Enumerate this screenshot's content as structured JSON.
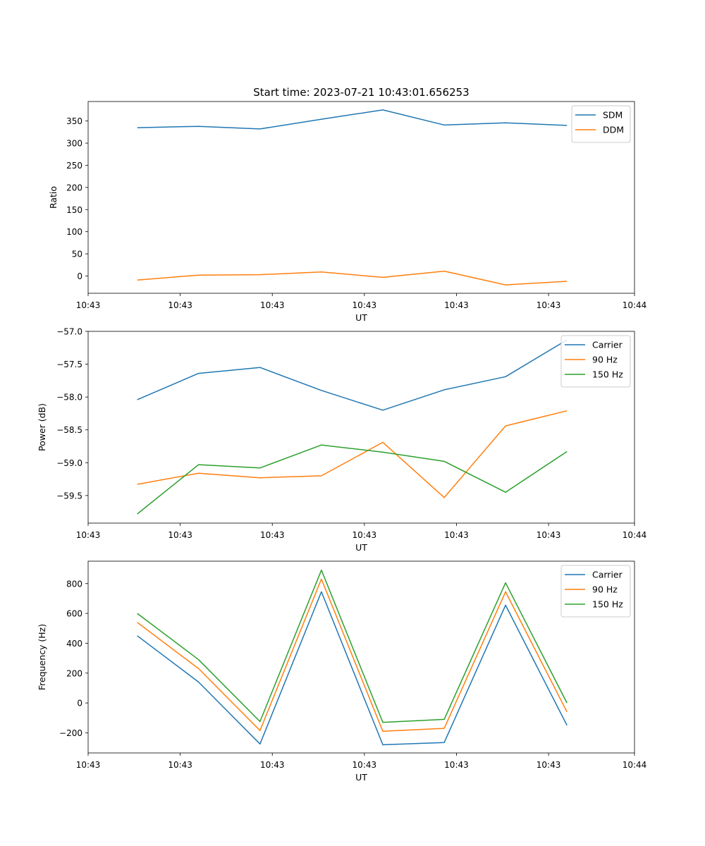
{
  "figure_title": "Start time: 2023-07-21 10:43:01.656253",
  "colors": {
    "blue": "#1f77b4",
    "orange": "#ff7f0e",
    "green": "#2ca02c"
  },
  "chart_data": [
    {
      "type": "line",
      "title": "Start time: 2023-07-21 10:43:01.656253",
      "xlabel": "UT",
      "ylabel": "Ratio",
      "x": [
        1,
        2,
        3,
        4,
        5,
        6,
        7,
        8
      ],
      "xlim": [
        0.2,
        9.1
      ],
      "xticks": [
        0.2,
        1.7,
        3.2,
        4.7,
        6.2,
        7.7,
        9.1
      ],
      "xtick_labels": [
        "10:43",
        "10:43",
        "10:43",
        "10:43",
        "10:43",
        "10:43",
        "10:44"
      ],
      "ylim": [
        -39,
        394
      ],
      "yticks": [
        0,
        50,
        100,
        150,
        200,
        250,
        300,
        350
      ],
      "ytick_labels": [
        "0",
        "50",
        "100",
        "150",
        "200",
        "250",
        "300",
        "350"
      ],
      "legend": "top-right",
      "series": [
        {
          "name": "SDM",
          "color": "#1f77b4",
          "values": [
            335,
            338,
            332,
            354,
            375,
            341,
            346,
            340
          ]
        },
        {
          "name": "DDM",
          "color": "#ff7f0e",
          "values": [
            -9,
            2,
            3,
            9,
            -3,
            11,
            -20,
            -12
          ]
        }
      ]
    },
    {
      "type": "line",
      "title": "",
      "xlabel": "UT",
      "ylabel": "Power (dB)",
      "x": [
        1,
        2,
        3,
        4,
        5,
        6,
        7,
        8
      ],
      "xlim": [
        0.2,
        9.1
      ],
      "xticks": [
        0.2,
        1.7,
        3.2,
        4.7,
        6.2,
        7.7,
        9.1
      ],
      "xtick_labels": [
        "10:43",
        "10:43",
        "10:43",
        "10:43",
        "10:43",
        "10:43",
        "10:44"
      ],
      "ylim": [
        -59.92,
        -57.0
      ],
      "yticks": [
        -57.0,
        -57.5,
        -58.0,
        -58.5,
        -59.0,
        -59.5
      ],
      "ytick_labels": [
        "−57.0",
        "−57.5",
        "−58.0",
        "−58.5",
        "−59.0",
        "−59.5"
      ],
      "legend": "top-right",
      "series": [
        {
          "name": "Carrier",
          "color": "#1f77b4",
          "values": [
            -58.04,
            -57.64,
            -57.55,
            -57.9,
            -58.2,
            -57.89,
            -57.69,
            -57.13
          ]
        },
        {
          "name": "90 Hz",
          "color": "#ff7f0e",
          "values": [
            -59.33,
            -59.16,
            -59.23,
            -59.2,
            -58.69,
            -59.53,
            -58.44,
            -58.21
          ]
        },
        {
          "name": "150 Hz",
          "color": "#2ca02c",
          "values": [
            -59.78,
            -59.03,
            -59.08,
            -58.73,
            -58.84,
            -58.98,
            -59.45,
            -58.83
          ]
        }
      ]
    },
    {
      "type": "line",
      "title": "",
      "xlabel": "UT",
      "ylabel": "Frequency (Hz)",
      "x": [
        1,
        2,
        3,
        4,
        5,
        6,
        7,
        8
      ],
      "xlim": [
        0.2,
        9.1
      ],
      "xticks": [
        0.2,
        1.7,
        3.2,
        4.7,
        6.2,
        7.7,
        9.1
      ],
      "xtick_labels": [
        "10:43",
        "10:43",
        "10:43",
        "10:43",
        "10:43",
        "10:43",
        "10:44"
      ],
      "ylim": [
        -335,
        950
      ],
      "yticks": [
        -200,
        0,
        200,
        400,
        600,
        800
      ],
      "ytick_labels": [
        "−200",
        "0",
        "200",
        "400",
        "600",
        "800"
      ],
      "legend": "top-right",
      "series": [
        {
          "name": "Carrier",
          "color": "#1f77b4",
          "values": [
            450,
            140,
            -275,
            745,
            -280,
            -265,
            655,
            -150
          ]
        },
        {
          "name": "90 Hz",
          "color": "#ff7f0e",
          "values": [
            540,
            230,
            -185,
            830,
            -190,
            -170,
            745,
            -60
          ]
        },
        {
          "name": "150 Hz",
          "color": "#2ca02c",
          "values": [
            600,
            290,
            -125,
            890,
            -130,
            -110,
            805,
            0
          ]
        }
      ]
    }
  ]
}
